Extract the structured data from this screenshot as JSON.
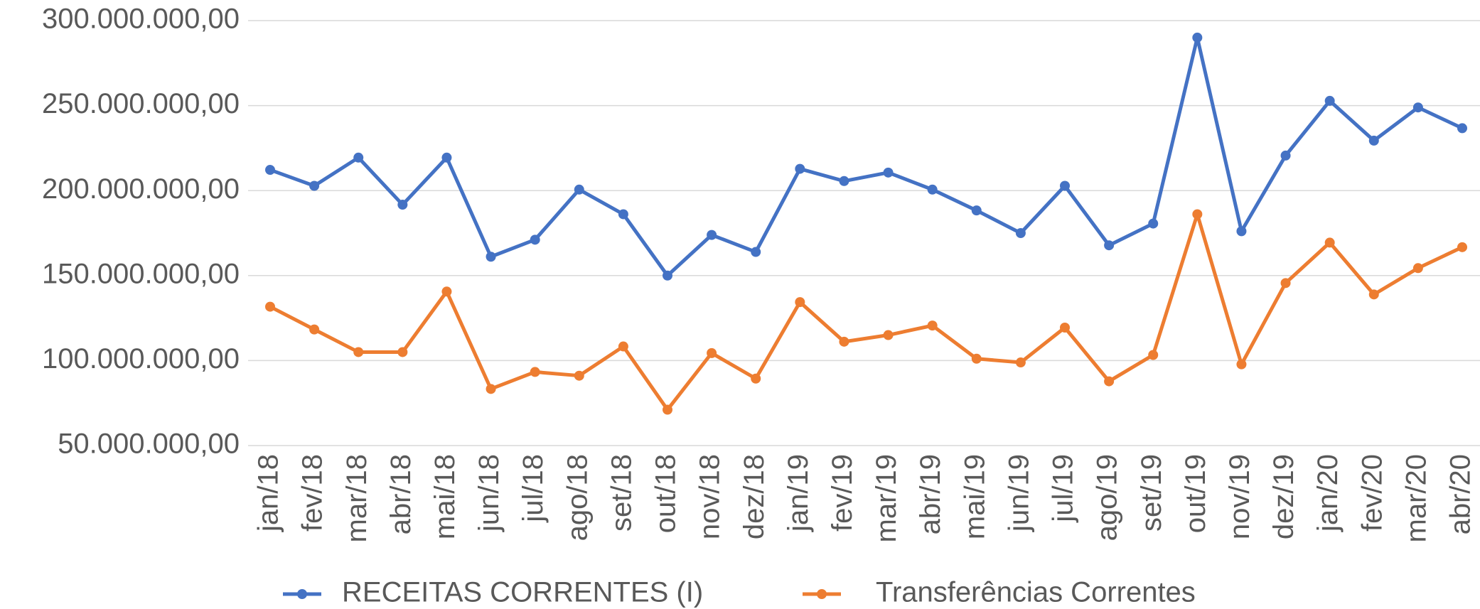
{
  "chart_data": {
    "type": "line",
    "categories": [
      "jan/18",
      "fev/18",
      "mar/18",
      "abr/18",
      "mai/18",
      "jun/18",
      "jul/18",
      "ago/18",
      "set/18",
      "out/18",
      "nov/18",
      "dez/18",
      "jan/19",
      "fev/19",
      "mar/19",
      "abr/19",
      "mai/19",
      "jun/19",
      "jul/19",
      "ago/19",
      "set/19",
      "out/19",
      "nov/19",
      "dez/19",
      "jan/20",
      "fev/20",
      "mar/20",
      "abr/20"
    ],
    "series": [
      {
        "name": "RECEITAS CORRENTES (I)",
        "color": "#4472c4",
        "values": [
          212200000,
          202800000,
          219400000,
          191700000,
          219400000,
          161100000,
          171100000,
          200600000,
          186100000,
          150000000,
          173900000,
          163900000,
          212800000,
          205600000,
          210600000,
          200600000,
          188300000,
          175000000,
          202800000,
          167800000,
          180600000,
          290000000,
          176100000,
          220600000,
          252800000,
          229400000,
          248900000,
          236700000
        ]
      },
      {
        "name": "Transferências Correntes",
        "color": "#ed7d31",
        "values": [
          131700000,
          118300000,
          105000000,
          105000000,
          140600000,
          83300000,
          93300000,
          91100000,
          108300000,
          71100000,
          104400000,
          89400000,
          134400000,
          111100000,
          115000000,
          120600000,
          101100000,
          98900000,
          119400000,
          87800000,
          103300000,
          186100000,
          97800000,
          145600000,
          169400000,
          138900000,
          154400000,
          166700000
        ]
      }
    ],
    "ylim": [
      50000000,
      300000000
    ],
    "yticks": [
      {
        "value": 50000000,
        "label": "50.000.000,00"
      },
      {
        "value": 100000000,
        "label": "100.000.000,00"
      },
      {
        "value": 150000000,
        "label": "150.000.000,00"
      },
      {
        "value": 200000000,
        "label": "200.000.000,00"
      },
      {
        "value": 250000000,
        "label": "250.000.000,00"
      },
      {
        "value": 300000000,
        "label": "300.000.000,00"
      }
    ],
    "grid": true,
    "legend": "bottom"
  }
}
